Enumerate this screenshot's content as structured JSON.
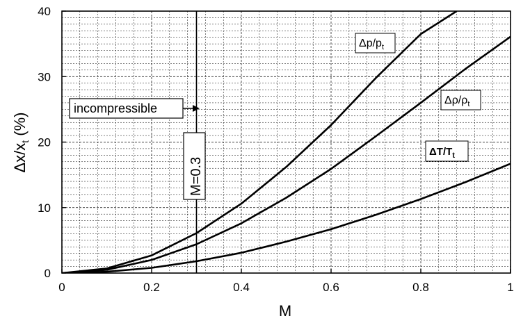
{
  "chart_data": {
    "type": "line",
    "xlabel": "M",
    "ylabel": "Δx/xt (%)",
    "xlim": [
      0,
      1
    ],
    "ylim": [
      0,
      40
    ],
    "x_ticks": [
      0,
      0.2,
      0.4,
      0.6,
      0.8,
      1
    ],
    "x_tick_labels": [
      "0",
      "0.2",
      "0.4",
      "0.6",
      "0.8",
      "1"
    ],
    "y_ticks": [
      0,
      10,
      20,
      30,
      40
    ],
    "y_tick_labels": [
      "0",
      "10",
      "20",
      "30",
      "40"
    ],
    "grid": "dashed major and minor",
    "series": [
      {
        "name": "Δp/pt",
        "x": [
          0,
          0.1,
          0.2,
          0.3,
          0.4,
          0.5,
          0.6,
          0.7,
          0.8,
          0.88
        ],
        "y": [
          0,
          0.7,
          2.7,
          6.1,
          10.6,
          16.2,
          22.6,
          29.8,
          36.5,
          40
        ]
      },
      {
        "name": "Δρ/ρt",
        "x": [
          0,
          0.1,
          0.2,
          0.3,
          0.4,
          0.5,
          0.6,
          0.7,
          0.8,
          0.9,
          1.0
        ],
        "y": [
          0,
          0.5,
          2.0,
          4.4,
          7.6,
          11.5,
          15.9,
          20.9,
          26.0,
          31.2,
          36.1
        ]
      },
      {
        "name": "ΔT/Tt",
        "x": [
          0,
          0.1,
          0.2,
          0.3,
          0.4,
          0.5,
          0.6,
          0.7,
          0.8,
          0.9,
          1.0
        ],
        "y": [
          0,
          0.2,
          0.8,
          1.8,
          3.1,
          4.8,
          6.7,
          8.9,
          11.3,
          13.9,
          16.7
        ]
      }
    ],
    "annotations": {
      "incompressible": "incompressible",
      "mach_line_label": "M=0.3",
      "mach_line_x": 0.3
    }
  }
}
